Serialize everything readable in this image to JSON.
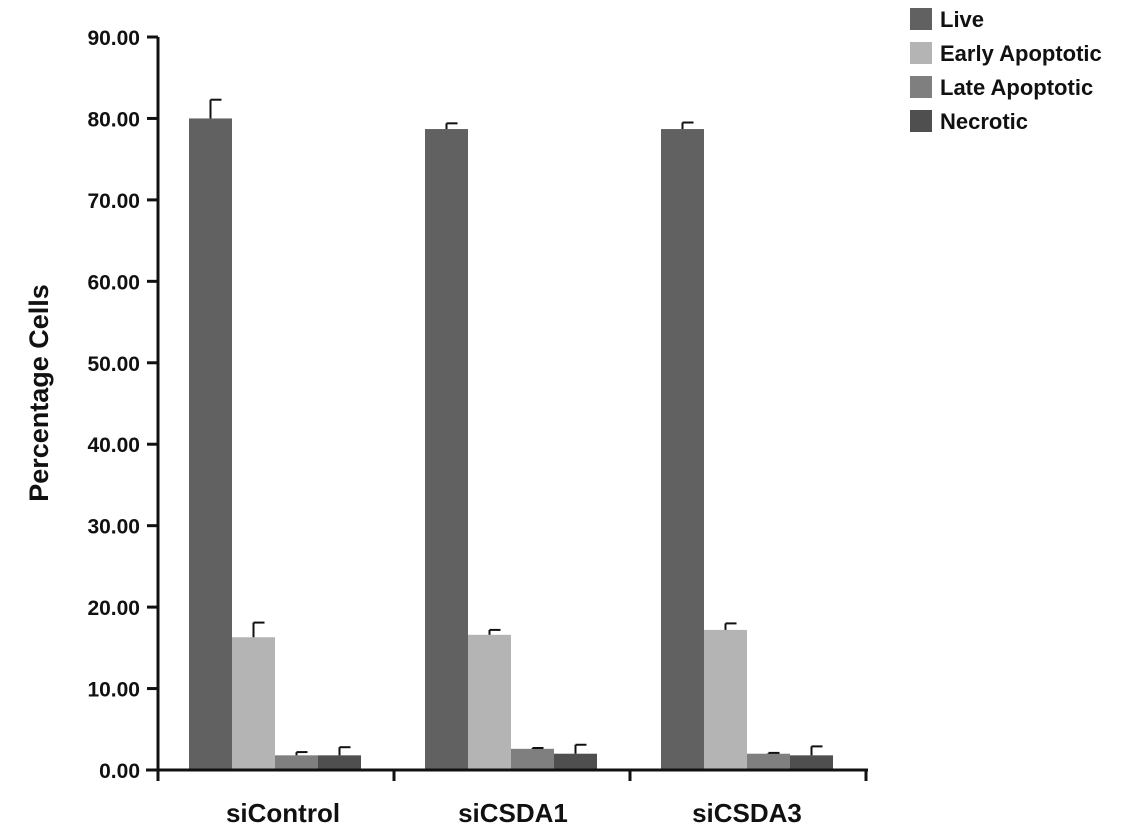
{
  "chart_data": {
    "type": "bar",
    "title": "",
    "xlabel": "",
    "ylabel": "Percentage Cells",
    "ylim": [
      0,
      90
    ],
    "yticks": [
      "0.00",
      "10.00",
      "20.00",
      "30.00",
      "40.00",
      "50.00",
      "60.00",
      "70.00",
      "80.00",
      "90.00"
    ],
    "categories": [
      "siControl",
      "siCSDA1",
      "siCSDA3"
    ],
    "series": [
      {
        "name": "Live",
        "color": "#616161",
        "values": [
          80.0,
          78.7,
          78.7
        ],
        "errors": [
          2.3,
          0.7,
          0.8
        ]
      },
      {
        "name": "Early Apoptotic",
        "color": "#b4b4b4",
        "values": [
          16.3,
          16.6,
          17.2
        ],
        "errors": [
          1.8,
          0.6,
          0.8
        ]
      },
      {
        "name": "Late Apoptotic",
        "color": "#7f7f7f",
        "values": [
          1.8,
          2.6,
          2.0
        ],
        "errors": [
          0.4,
          0.1,
          0.1
        ]
      },
      {
        "name": "Necrotic",
        "color": "#4f4f4f",
        "values": [
          1.8,
          2.0,
          1.8
        ],
        "errors": [
          1.0,
          1.1,
          1.1
        ]
      }
    ],
    "grid": false,
    "legend": "top-right"
  }
}
